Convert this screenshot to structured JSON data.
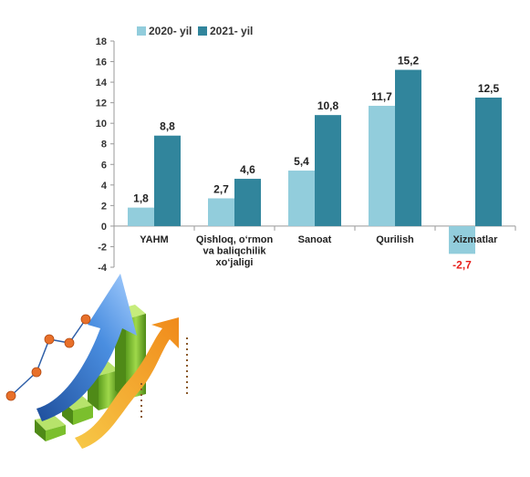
{
  "chart_data": {
    "type": "bar",
    "categories": [
      "YAHM",
      "Qishloq, o‘rmon va baliqchilik xo‘jaligi",
      "Sanoat",
      "Qurilish",
      "Xizmatlar"
    ],
    "category_lines": [
      [
        "YAHM"
      ],
      [
        "Qishloq, o‘rmon",
        "va baliqchilik",
        "xo‘jaligi"
      ],
      [
        "Sanoat"
      ],
      [
        "Qurilish"
      ],
      [
        "Xizmatlar"
      ]
    ],
    "series": [
      {
        "name": "2020- yil",
        "values": [
          1.8,
          2.7,
          5.4,
          11.7,
          -2.7
        ],
        "labels": [
          "1,8",
          "2,7",
          "5,4",
          "11,7",
          "-2,7"
        ],
        "color": "#92cddc"
      },
      {
        "name": "2021- yil",
        "values": [
          8.8,
          4.6,
          10.8,
          15.2,
          12.5
        ],
        "labels": [
          "8,8",
          "4,6",
          "10,8",
          "15,2",
          "12,5"
        ],
        "color": "#31859c"
      }
    ],
    "ylim": [
      -4,
      18
    ],
    "yticks": [
      -4,
      -2,
      0,
      2,
      4,
      6,
      8,
      10,
      12,
      14,
      16,
      18
    ],
    "negative_label_color": "#e8201c",
    "legend_position": "top"
  },
  "decoration": {
    "icon": "growth-chart-arrow-icon",
    "colors": {
      "arrow": "#3a7fd5",
      "bars": "#8cc63f",
      "curve": "#f6a623",
      "dots": "#e8702a"
    }
  }
}
